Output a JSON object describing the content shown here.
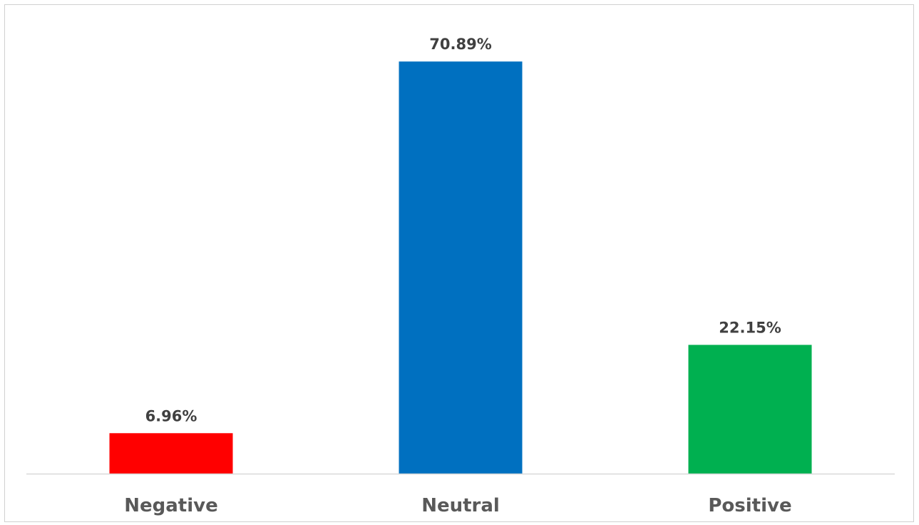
{
  "caption": {
    "text": ""
  },
  "chart_data": {
    "type": "bar",
    "categories": [
      "Negative",
      "Neutral",
      "Positive"
    ],
    "values": [
      6.96,
      70.89,
      22.15
    ],
    "data_labels": [
      "6.96%",
      "70.89%",
      "22.15%"
    ],
    "colors": [
      "#ff0000",
      "#0070c0",
      "#00b050"
    ],
    "title": "",
    "xlabel": "",
    "ylabel": "",
    "ylim": [
      0,
      80
    ],
    "grid": false,
    "legend": "none",
    "axis_color": "#d9d9d9"
  }
}
